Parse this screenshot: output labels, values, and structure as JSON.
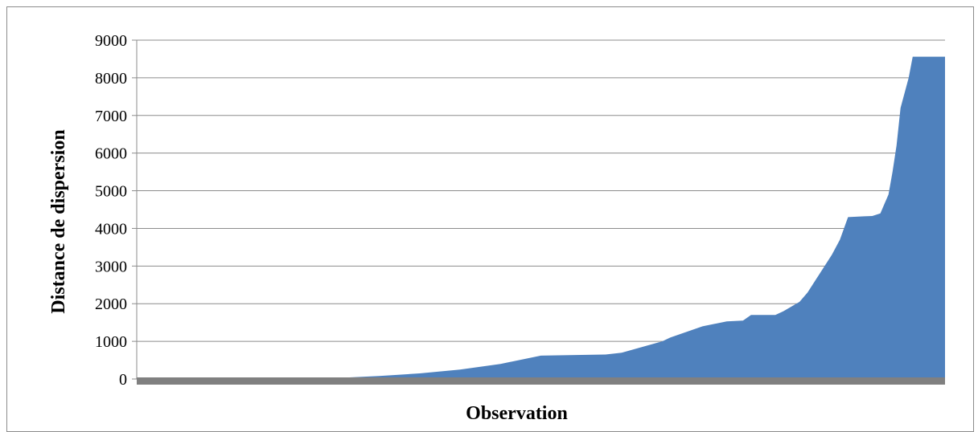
{
  "chart_data": {
    "type": "area",
    "title": "",
    "xlabel": "Observation",
    "ylabel": "Distance de dispersion",
    "ylim": [
      0,
      9000
    ],
    "yticks": [
      0,
      1000,
      2000,
      3000,
      4000,
      5000,
      6000,
      7000,
      8000,
      9000
    ],
    "grid": true,
    "legend": "none",
    "fill_color": "#4f81bd",
    "baseline_color": "#808080",
    "grid_color": "#8c8c8c",
    "series": [
      {
        "x": [
          0,
          0.1,
          0.2,
          0.25,
          0.3,
          0.35,
          0.4,
          0.45,
          0.5,
          0.55,
          0.58,
          0.6,
          0.65,
          0.66,
          0.7,
          0.73,
          0.75,
          0.76,
          0.78,
          0.79,
          0.8,
          0.82,
          0.83,
          0.86,
          0.87,
          0.88,
          0.89,
          0.9,
          0.91,
          0.92,
          0.93,
          0.935,
          0.94,
          0.945,
          0.955,
          0.96,
          0.965,
          0.97,
          0.975,
          0.98,
          0.985,
          0.99,
          0.993,
          0.996,
          0.998,
          1.0
        ],
        "y": [
          0,
          0,
          0,
          30,
          80,
          150,
          250,
          400,
          620,
          640,
          650,
          700,
          1000,
          1100,
          1400,
          1530,
          1550,
          1700,
          1700,
          1700,
          1800,
          2050,
          2300,
          3300,
          3700,
          4300,
          4310,
          4320,
          4330,
          4400,
          4900,
          5500,
          6200,
          7200,
          8000,
          8560,
          8560,
          8560,
          8560,
          8560,
          8560,
          8560,
          8560,
          8560,
          8560,
          8560
        ]
      }
    ]
  }
}
